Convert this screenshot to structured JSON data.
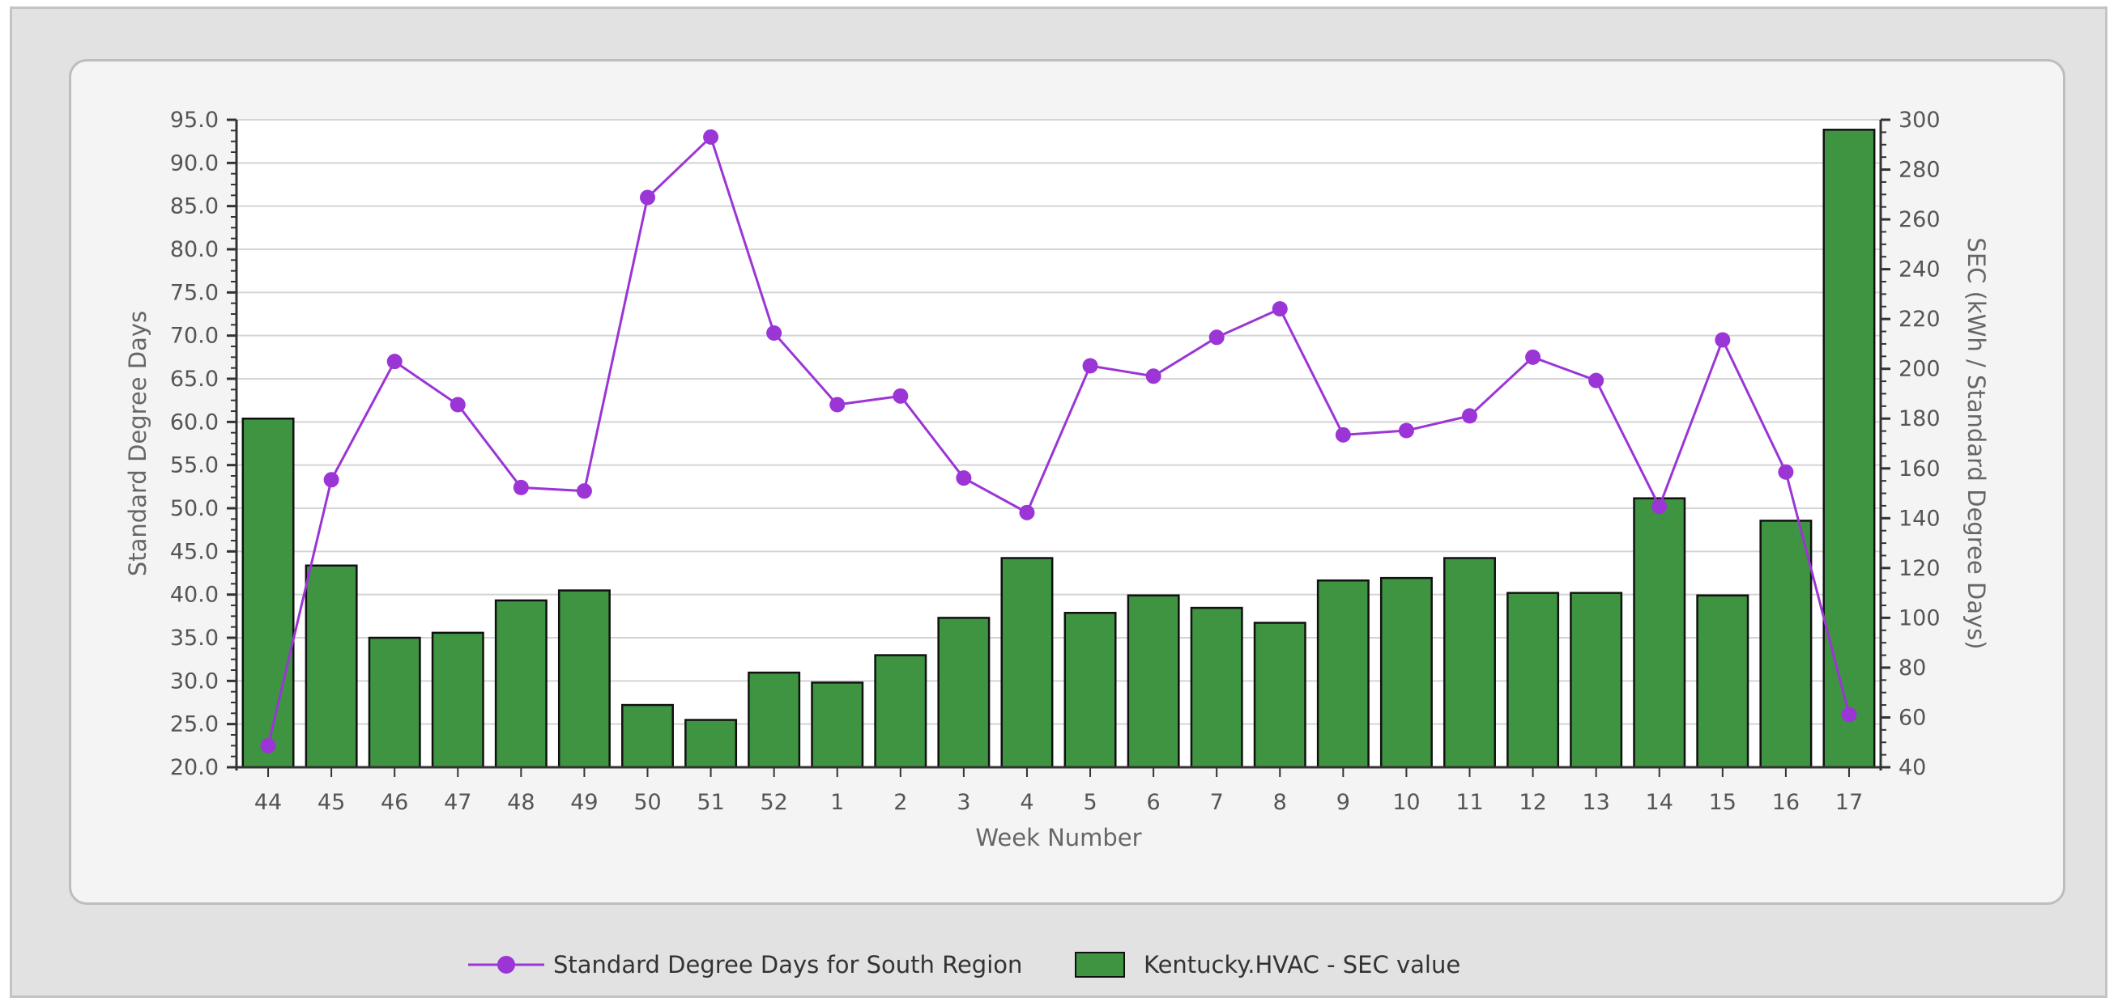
{
  "chart_data": {
    "type": "bar",
    "xlabel": "Week Number",
    "ylabel_left": "Standard Degree Days",
    "ylabel_right": "SEC (kWh / Standard Degree Days)",
    "categories": [
      "44",
      "45",
      "46",
      "47",
      "48",
      "49",
      "50",
      "51",
      "52",
      "1",
      "2",
      "3",
      "4",
      "5",
      "6",
      "7",
      "8",
      "9",
      "10",
      "11",
      "12",
      "13",
      "14",
      "15",
      "16",
      "17"
    ],
    "y_left": {
      "range": [
        20,
        95
      ],
      "step": 5,
      "decimals": 1
    },
    "y_right": {
      "range": [
        40,
        300
      ],
      "step": 20
    },
    "grid": true,
    "legend_position": "bottom",
    "series": [
      {
        "name": "Standard Degree Days for South Region",
        "type": "line",
        "axis": "left",
        "color": "#9b35d6",
        "values": [
          22.5,
          53.3,
          67.0,
          62.0,
          52.4,
          52.0,
          86.0,
          93.0,
          70.3,
          62.0,
          63.0,
          53.5,
          49.5,
          66.5,
          65.3,
          69.8,
          73.1,
          58.5,
          59.0,
          60.7,
          67.5,
          64.8,
          50.2,
          69.5,
          54.2,
          26.1
        ]
      },
      {
        "name": "Kentucky.HVAC - SEC value",
        "type": "bar",
        "axis": "right",
        "color": "#3f9442",
        "values": [
          180,
          121,
          92,
          94,
          107,
          111,
          65,
          59,
          78,
          74,
          85,
          100,
          124,
          102,
          109,
          104,
          98,
          115,
          116,
          124,
          110,
          110,
          148,
          109,
          139,
          296
        ]
      }
    ]
  }
}
